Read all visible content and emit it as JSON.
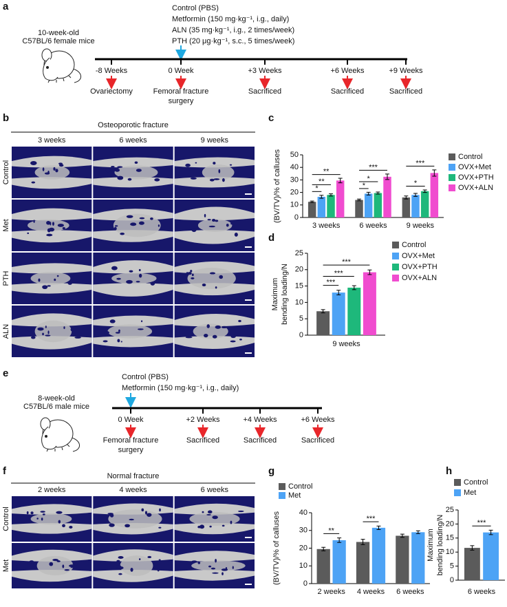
{
  "panel_labels": [
    "a",
    "b",
    "c",
    "d",
    "e",
    "f",
    "g",
    "h"
  ],
  "timelines": [
    {
      "mouse": [
        "10-week-old",
        "C57BL/6 female mice"
      ],
      "treatments": [
        "Control (PBS)",
        "Metformin (150 mg·kg⁻¹, i.g., daily)",
        "ALN (35 mg·kg⁻¹, i.g., 2 times/week)",
        "PTH (20 μg·kg⁻¹, s.c., 5 times/week)"
      ],
      "timepoints": [
        "-8 Weeks",
        "0 Week",
        "+3 Weeks",
        "+6 Weeks",
        "+9 Weeks"
      ],
      "events": [
        [
          "Ovariectomy"
        ],
        [
          "Femoral fracture",
          "surgery"
        ],
        [
          "Sacrificed"
        ],
        [
          "Sacrificed"
        ],
        [
          "Sacrificed"
        ]
      ]
    },
    {
      "mouse": [
        "8-week-old",
        "C57BL/6 male mice"
      ],
      "treatments": [
        "Control (PBS)",
        "Metformin (150 mg·kg⁻¹, i.g., daily)"
      ],
      "timepoints": [
        "0 Week",
        "+2 Weeks",
        "+4 Weeks",
        "+6 Weeks"
      ],
      "events": [
        [
          "Femoral fracture",
          "surgery"
        ],
        [
          "Sacrificed"
        ],
        [
          "Sacrificed"
        ],
        [
          "Sacrificed"
        ]
      ]
    }
  ],
  "images": [
    {
      "title": "Osteoporotic fracture",
      "columns": [
        "3 weeks",
        "6 weeks",
        "9 weeks"
      ],
      "rows": [
        "Control",
        "Met",
        "PTH",
        "ALN"
      ]
    },
    {
      "title": "Normal fracture",
      "columns": [
        "2 weeks",
        "4 weeks",
        "6 weeks"
      ],
      "rows": [
        "Control",
        "Met"
      ]
    }
  ],
  "chart_data": [
    {
      "type": "bar",
      "ylabel": [
        "(BV/TV)/% of calluses"
      ],
      "categories": [
        "3 weeks",
        "6 weeks",
        "9 weeks"
      ],
      "series": [
        {
          "name": "Control",
          "color": "#5b5b5b",
          "values": [
            12.5,
            14,
            16
          ],
          "errors": [
            0.6,
            0.7,
            1.2
          ]
        },
        {
          "name": "OVX+Met",
          "color": "#4da3f5",
          "values": [
            16.5,
            19,
            18
          ],
          "errors": [
            1.2,
            1.1,
            1.2
          ]
        },
        {
          "name": "OVX+PTH",
          "color": "#1eb87b",
          "values": [
            18,
            19.5,
            21
          ],
          "errors": [
            0.9,
            0.8,
            1
          ]
        },
        {
          "name": "OVX+ALN",
          "color": "#f04ccf",
          "values": [
            29.5,
            32.5,
            35.5
          ],
          "errors": [
            1.8,
            2.2,
            2.5
          ]
        }
      ],
      "ylim": [
        0,
        50
      ],
      "yticks": [
        0,
        10,
        20,
        30,
        40,
        50
      ],
      "legend": "right",
      "significance": [
        [
          "*",
          "**",
          "**"
        ],
        [
          "*",
          "*",
          "***"
        ],
        [
          null,
          "*",
          "***"
        ]
      ]
    },
    {
      "type": "bar",
      "ylabel": [
        "Maximum",
        "bending loading/N"
      ],
      "categories": [
        "9 weeks"
      ],
      "series": [
        {
          "name": "Control",
          "color": "#5b5b5b",
          "values": [
            7.3
          ],
          "errors": [
            0.5
          ]
        },
        {
          "name": "OVX+Met",
          "color": "#4da3f5",
          "values": [
            13
          ],
          "errors": [
            0.7
          ]
        },
        {
          "name": "OVX+PTH",
          "color": "#1eb87b",
          "values": [
            14.5
          ],
          "errors": [
            0.6
          ]
        },
        {
          "name": "OVX+ALN",
          "color": "#f04ccf",
          "values": [
            19.2
          ],
          "errors": [
            0.7
          ]
        }
      ],
      "ylim": [
        0,
        25
      ],
      "yticks": [
        0,
        5,
        10,
        15,
        20,
        25
      ],
      "legend": "right",
      "significance": [
        [
          "***",
          "***",
          "***"
        ]
      ]
    },
    {
      "type": "bar",
      "ylabel": [
        "(BV/TV)/% of calluses"
      ],
      "categories": [
        "2 weeks",
        "4 weeks",
        "6 weeks"
      ],
      "series": [
        {
          "name": "Control",
          "color": "#5b5b5b",
          "values": [
            19.5,
            23.5,
            27
          ],
          "errors": [
            1,
            1.5,
            0.9
          ]
        },
        {
          "name": "Met",
          "color": "#4da3f5",
          "values": [
            24.5,
            31.5,
            29
          ],
          "errors": [
            1.3,
            1,
            0.8
          ]
        }
      ],
      "ylim": [
        0,
        40
      ],
      "yticks": [
        0,
        10,
        20,
        30,
        40
      ],
      "legend": "top",
      "significance": [
        [
          "**"
        ],
        [
          "***"
        ],
        [
          null
        ]
      ]
    },
    {
      "type": "bar",
      "ylabel": [
        "Maximum",
        "bending loading/N"
      ],
      "categories": [
        "6 weeks"
      ],
      "series": [
        {
          "name": "Control",
          "color": "#5b5b5b",
          "values": [
            11.5
          ],
          "errors": [
            0.8
          ]
        },
        {
          "name": "Met",
          "color": "#4da3f5",
          "values": [
            17
          ],
          "errors": [
            0.8
          ]
        }
      ],
      "ylim": [
        0,
        25
      ],
      "yticks": [
        0,
        5,
        10,
        15,
        20,
        25
      ],
      "legend": "top",
      "significance": [
        [
          "***"
        ]
      ]
    }
  ]
}
